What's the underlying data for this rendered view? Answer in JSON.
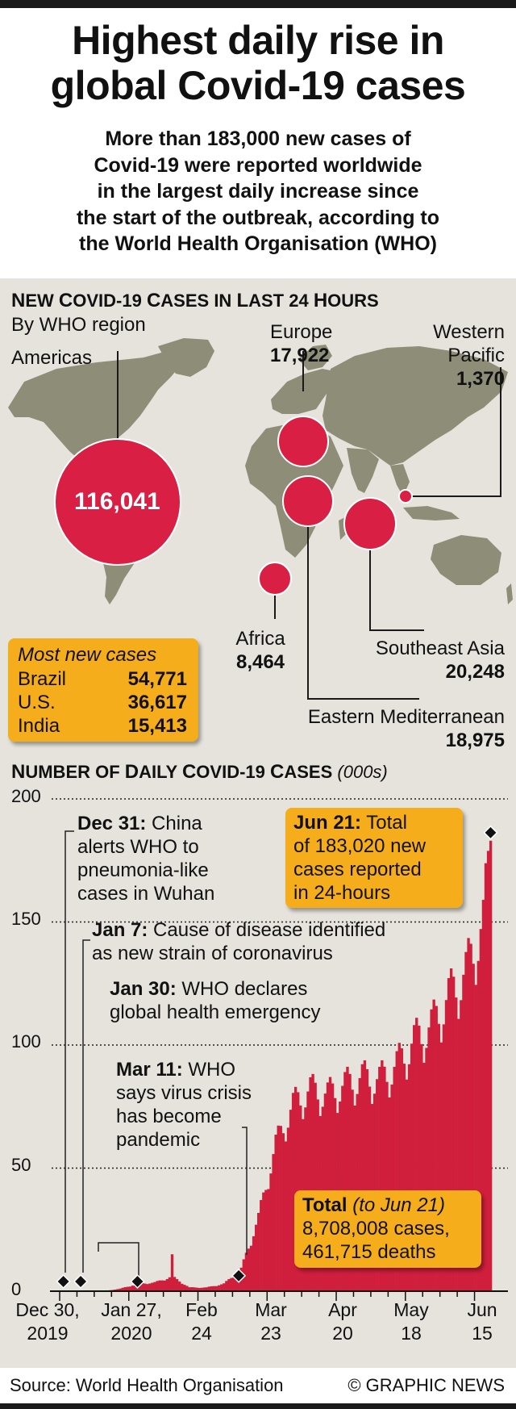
{
  "header": {
    "title_lines": [
      "Highest daily rise in",
      "global Covid-19 cases"
    ],
    "subtitle_lines": [
      "More than 183,000 new cases of",
      "Covid-19 were reported worldwide",
      "in the largest daily increase since",
      "the start of the outbreak, according to",
      "the World Health Organisation (WHO)"
    ]
  },
  "map_section": {
    "heading_cap1": "N",
    "heading_rest1": "EW ",
    "heading_cap2": "C",
    "heading_rest2": "OVID-19 ",
    "heading_cap3": "C",
    "heading_rest3": "ASES IN ",
    "heading_cap4": "L",
    "heading_rest4": "AST 24 ",
    "heading_cap5": "H",
    "heading_rest5": "OURS",
    "subheading": "By WHO region",
    "regions": [
      {
        "name": "Americas",
        "value": "116,041"
      },
      {
        "name": "Europe",
        "value": "17,922"
      },
      {
        "name_line1": "Western",
        "name_line2": "Pacific",
        "value": "1,370"
      },
      {
        "name": "Africa",
        "value": "8,464"
      },
      {
        "name": "Southeast Asia",
        "value": "20,248"
      },
      {
        "name": "Eastern Mediterranean",
        "value": "18,975"
      }
    ],
    "bubble_color": "#d91f43",
    "land_color": "#8e8d77"
  },
  "most_new_cases": {
    "title": "Most new cases",
    "rows": [
      {
        "country": "Brazil",
        "value": "54,771"
      },
      {
        "country": "U.S.",
        "value": "36,617"
      },
      {
        "country": "India",
        "value": "15,413"
      }
    ],
    "box_color": "#f5ad1c"
  },
  "chart_section": {
    "heading_cap1": "N",
    "heading_rest1": "UMBER OF ",
    "heading_cap2": "D",
    "heading_rest2": "AILY ",
    "heading_cap3": "C",
    "heading_rest3": "OVID-19 ",
    "heading_cap4": "C",
    "heading_rest4": "ASES",
    "heading_unit": "(000s)",
    "y_ticks": [
      "200",
      "150",
      "100",
      "50",
      "0"
    ],
    "x_ticks": [
      {
        "line1": "Dec 30,",
        "line2": "2019"
      },
      {
        "line1": "Jan 27,",
        "line2": "2020"
      },
      {
        "line1": "Feb",
        "line2": "24"
      },
      {
        "line1": "Mar",
        "line2": "23"
      },
      {
        "line1": "Apr",
        "line2": "20"
      },
      {
        "line1": "May",
        "line2": "18"
      },
      {
        "line1": "Jun",
        "line2": "15"
      }
    ],
    "annotations": [
      {
        "date": "Dec 31:",
        "lines": [
          " China",
          "alerts WHO to",
          "pneumonia-like",
          "cases in Wuhan"
        ]
      },
      {
        "date": "Jan 7:",
        "lines": [
          " Cause of disease identified",
          "as new strain of coronavirus"
        ]
      },
      {
        "date": "Jan 30:",
        "lines": [
          " WHO declares",
          "global health emergency"
        ]
      },
      {
        "date": "Mar 11:",
        "lines": [
          " WHO",
          "says virus crisis",
          "has become",
          "pandemic"
        ]
      },
      {
        "date": "Jun 21:",
        "lines": [
          " Total",
          "of 183,020 new",
          "cases reported",
          "in 24-hours"
        ]
      }
    ],
    "total_box": {
      "label": "Total",
      "qualifier": "(to Jun 21)",
      "cases": "8,708,008 cases,",
      "deaths": "461,715 deaths"
    },
    "bar_color": "#d01f3c"
  },
  "chart_data": {
    "type": "bar",
    "title": "Number of daily Covid-19 cases (000s)",
    "xlabel": "",
    "ylabel": "",
    "ylim": [
      0,
      200
    ],
    "x_start": "2019-12-30",
    "x_end": "2020-06-21",
    "x_tick_labels": [
      "Dec 30, 2019",
      "Jan 27, 2020",
      "Feb 24",
      "Mar 23",
      "Apr 20",
      "May 18",
      "Jun 15"
    ],
    "weekly_approx_values_thousands": [
      {
        "week_start": "2019-12-30",
        "value": 0
      },
      {
        "week_start": "2020-01-06",
        "value": 0
      },
      {
        "week_start": "2020-01-13",
        "value": 0
      },
      {
        "week_start": "2020-01-20",
        "value": 1
      },
      {
        "week_start": "2020-01-27",
        "value": 3
      },
      {
        "week_start": "2020-02-03",
        "value": 3.5
      },
      {
        "week_start": "2020-02-10",
        "value": 6
      },
      {
        "week_start": "2020-02-17",
        "value": 1.5
      },
      {
        "week_start": "2020-02-24",
        "value": 1.5
      },
      {
        "week_start": "2020-03-02",
        "value": 3
      },
      {
        "week_start": "2020-03-09",
        "value": 9
      },
      {
        "week_start": "2020-03-16",
        "value": 30
      },
      {
        "week_start": "2020-03-23",
        "value": 60
      },
      {
        "week_start": "2020-03-30",
        "value": 76
      },
      {
        "week_start": "2020-04-06",
        "value": 82
      },
      {
        "week_start": "2020-04-13",
        "value": 80
      },
      {
        "week_start": "2020-04-20",
        "value": 84
      },
      {
        "week_start": "2020-04-27",
        "value": 87
      },
      {
        "week_start": "2020-05-04",
        "value": 86
      },
      {
        "week_start": "2020-05-11",
        "value": 92
      },
      {
        "week_start": "2020-05-18",
        "value": 102
      },
      {
        "week_start": "2020-05-25",
        "value": 108
      },
      {
        "week_start": "2020-06-01",
        "value": 120
      },
      {
        "week_start": "2020-06-08",
        "value": 130
      },
      {
        "week_start": "2020-06-15",
        "value": 150
      }
    ],
    "peak": {
      "date": "2020-06-21",
      "value": 183.02
    },
    "markers": [
      {
        "date": "2019-12-31",
        "value": 0
      },
      {
        "date": "2020-01-07",
        "value": 0
      },
      {
        "date": "2020-01-30",
        "value": 0
      },
      {
        "date": "2020-03-11",
        "value": 3
      },
      {
        "date": "2020-06-21",
        "value": 183.02
      }
    ]
  },
  "footer": {
    "source": "Source: World Health Organisation",
    "credit": "© GRAPHIC NEWS"
  }
}
